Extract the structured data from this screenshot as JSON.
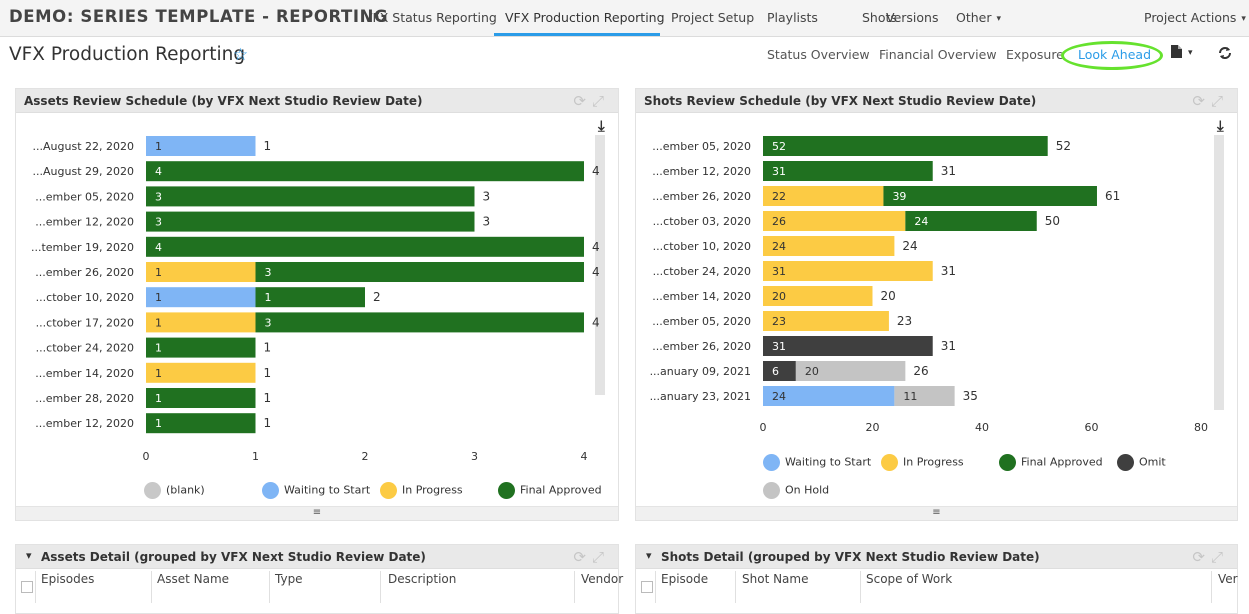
{
  "app": {
    "project_title": "DEMO: SERIES TEMPLATE - REPORTING",
    "nav": [
      "VFX Status Reporting",
      "VFX Production Reporting",
      "Project Setup",
      "Playlists",
      "Shots",
      "Versions",
      "Other"
    ],
    "project_actions": "Project Actions"
  },
  "page": {
    "title": "VFX Production Reporting",
    "subnav": [
      "Status Overview",
      "Financial Overview",
      "Exposure",
      "Look Ahead"
    ]
  },
  "colors": {
    "blank": "#c8c8c8",
    "waiting": "#7fb5f5",
    "in_progress": "#fccb44",
    "final_approved": "#207120",
    "omit": "#3f3f3f",
    "on_hold": "#c4c4c4",
    "accent": "#2b9ce8",
    "highlight": "#66e22e"
  },
  "assets_chart": {
    "title": "Assets Review Schedule (by VFX Next Studio Review Date)",
    "chart_data": {
      "type": "bar",
      "orientation": "horizontal",
      "stacked": true,
      "categories": [
        "...August 22, 2020",
        "...August 29, 2020",
        "...ember 05, 2020",
        "...ember 12, 2020",
        "...tember 19, 2020",
        "...ember 26, 2020",
        "...ctober 10, 2020",
        "...ctober 17, 2020",
        "...ctober 24, 2020",
        "...ember 14, 2020",
        "...ember 28, 2020",
        "...ember 12, 2020"
      ],
      "series": [
        {
          "name": "(blank)",
          "color": "#c8c8c8",
          "values": [
            0,
            0,
            0,
            0,
            0,
            0,
            0,
            0,
            0,
            0,
            0,
            0
          ]
        },
        {
          "name": "Waiting to Start",
          "color": "#7fb5f5",
          "values": [
            1,
            0,
            0,
            0,
            0,
            0,
            1,
            0,
            0,
            0,
            0,
            0
          ]
        },
        {
          "name": "In Progress",
          "color": "#fccb44",
          "values": [
            0,
            0,
            0,
            0,
            0,
            1,
            0,
            1,
            0,
            1,
            0,
            0
          ]
        },
        {
          "name": "Final Approved",
          "color": "#207120",
          "values": [
            0,
            4,
            3,
            3,
            4,
            3,
            1,
            3,
            1,
            0,
            1,
            1
          ]
        }
      ],
      "totals": [
        1,
        4,
        3,
        3,
        4,
        4,
        2,
        4,
        1,
        1,
        1,
        1
      ],
      "xticks": [
        0,
        1,
        2,
        3,
        4
      ],
      "xlim": [
        0,
        4
      ],
      "legend": "bottom"
    }
  },
  "shots_chart": {
    "title": "Shots Review Schedule (by VFX Next Studio Review Date)",
    "chart_data": {
      "type": "bar",
      "orientation": "horizontal",
      "stacked": true,
      "categories": [
        "...ember 05, 2020",
        "...ember 12, 2020",
        "...ember 26, 2020",
        "...ctober 03, 2020",
        "...ctober 10, 2020",
        "...ctober 24, 2020",
        "...ember 14, 2020",
        "...ember 05, 2020",
        "...ember 26, 2020",
        "...anuary 09, 2021",
        "...anuary 23, 2021"
      ],
      "series": [
        {
          "name": "Waiting to Start",
          "color": "#7fb5f5",
          "values": [
            0,
            0,
            0,
            0,
            0,
            0,
            0,
            0,
            0,
            0,
            24
          ]
        },
        {
          "name": "In Progress",
          "color": "#fccb44",
          "values": [
            0,
            0,
            22,
            26,
            24,
            31,
            20,
            23,
            0,
            0,
            0
          ]
        },
        {
          "name": "Final Approved",
          "color": "#207120",
          "values": [
            52,
            31,
            39,
            24,
            0,
            0,
            0,
            0,
            0,
            0,
            0
          ]
        },
        {
          "name": "Omit",
          "color": "#3f3f3f",
          "values": [
            0,
            0,
            0,
            0,
            0,
            0,
            0,
            0,
            31,
            6,
            0
          ]
        },
        {
          "name": "On Hold",
          "color": "#c4c4c4",
          "values": [
            0,
            0,
            0,
            0,
            0,
            0,
            0,
            0,
            0,
            20,
            11
          ]
        }
      ],
      "totals": [
        52,
        31,
        61,
        50,
        24,
        31,
        20,
        23,
        31,
        26,
        35
      ],
      "xticks": [
        0,
        20,
        40,
        60,
        80
      ],
      "xlim": [
        0,
        80
      ],
      "legend": "bottom"
    }
  },
  "assets_detail": {
    "title": "Assets Detail (grouped by VFX Next Studio Review Date)",
    "columns": [
      "Episodes",
      "Asset Name",
      "Type",
      "Description",
      "Vendor"
    ]
  },
  "shots_detail": {
    "title": "Shots Detail (grouped by VFX Next Studio Review Date)",
    "columns": [
      "Episode",
      "Shot Name",
      "Scope of Work",
      "Ver"
    ]
  },
  "icons": {
    "star": "☆",
    "download": "⤓",
    "caret": "▾",
    "triangle": "◢",
    "grip": "≡"
  }
}
